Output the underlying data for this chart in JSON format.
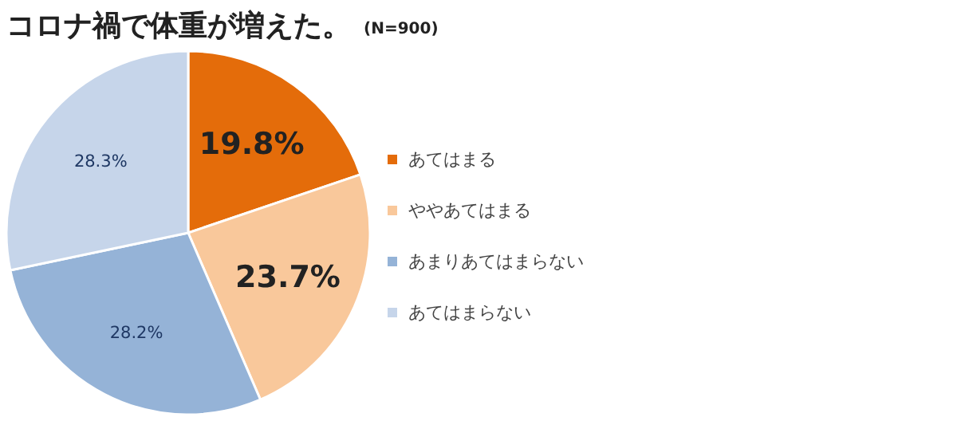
{
  "chart_data": {
    "type": "pie",
    "title": "コロナ禍で体重が増えた。",
    "subtitle": "(N=900)",
    "categories": [
      "あてはまる",
      "ややあてはまる",
      "あまりあてはまらない",
      "あてはまらない"
    ],
    "values": [
      19.8,
      23.7,
      28.2,
      28.3
    ],
    "value_labels": [
      "19.8%",
      "23.7%",
      "28.2%",
      "28.3%"
    ],
    "colors": [
      "#e46c0a",
      "#f9c89b",
      "#95b3d7",
      "#c6d5ea"
    ],
    "legend": "right"
  }
}
